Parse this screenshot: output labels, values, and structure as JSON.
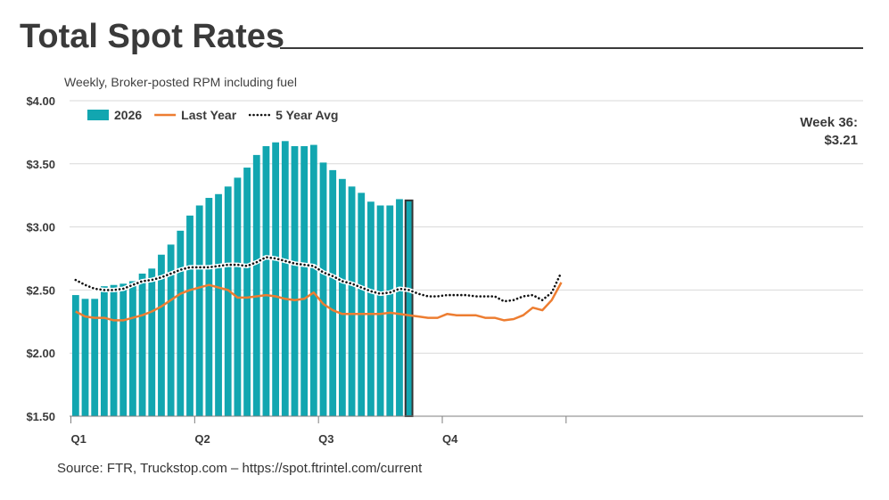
{
  "header": {
    "title": "Total Spot Rates",
    "subtitle": "Weekly, Broker-posted RPM including fuel"
  },
  "footer": {
    "source": "Source: FTR, Truckstop.com – https://spot.ftrintel.com/current"
  },
  "colors": {
    "bars": "#12a6b0",
    "last_year": "#ed7d31",
    "five_year_avg": "#111111",
    "highlight_outline": "#333333",
    "grid": "#d9d9d9",
    "text": "#3a3a3a"
  },
  "chart_data": {
    "type": "bar",
    "title": "Total Spot Rates",
    "subtitle": "Weekly, Broker-posted RPM including fuel",
    "ylim": [
      1.5,
      4.0
    ],
    "yticks": [
      {
        "value": 1.5,
        "label": "$1.50"
      },
      {
        "value": 2.0,
        "label": "$2.00"
      },
      {
        "value": 2.5,
        "label": "$2.50"
      },
      {
        "value": 3.0,
        "label": "$3.00"
      },
      {
        "value": 3.5,
        "label": "$3.50"
      },
      {
        "value": 4.0,
        "label": "$4.00"
      }
    ],
    "weeks_total": 52,
    "quarters": [
      {
        "label": "Q1",
        "start_week": 1
      },
      {
        "label": "Q2",
        "start_week": 14
      },
      {
        "label": "Q3",
        "start_week": 27
      },
      {
        "label": "Q4",
        "start_week": 40
      }
    ],
    "grid": true,
    "legend_position": "top-left",
    "legend": [
      {
        "key": "2026",
        "label": "2026",
        "style": "bar"
      },
      {
        "key": "last_year",
        "label": "Last Year",
        "style": "solid-line"
      },
      {
        "key": "five_year_avg",
        "label": "5 Year Avg",
        "style": "dotted-line"
      }
    ],
    "annotation": {
      "lines": [
        "Week 36:",
        "$3.21"
      ],
      "week": 36,
      "value": 3.21
    },
    "series": [
      {
        "key": "2026",
        "name": "2026",
        "type": "bar",
        "values": [
          2.46,
          2.43,
          2.43,
          2.53,
          2.54,
          2.55,
          2.57,
          2.63,
          2.67,
          2.78,
          2.86,
          2.97,
          3.09,
          3.17,
          3.23,
          3.26,
          3.32,
          3.39,
          3.47,
          3.57,
          3.64,
          3.67,
          3.68,
          3.64,
          3.64,
          3.65,
          3.51,
          3.45,
          3.38,
          3.32,
          3.27,
          3.2,
          3.17,
          3.17,
          3.22,
          3.21
        ]
      },
      {
        "key": "last_year",
        "name": "Last Year",
        "type": "line",
        "values": [
          2.33,
          2.29,
          2.28,
          2.28,
          2.26,
          2.26,
          2.28,
          2.3,
          2.33,
          2.37,
          2.42,
          2.47,
          2.5,
          2.52,
          2.54,
          2.52,
          2.5,
          2.44,
          2.44,
          2.45,
          2.46,
          2.45,
          2.43,
          2.42,
          2.43,
          2.48,
          2.39,
          2.34,
          2.31,
          2.31,
          2.31,
          2.31,
          2.31,
          2.32,
          2.31,
          2.3,
          2.29,
          2.28,
          2.28,
          2.31,
          2.3,
          2.3,
          2.3,
          2.28,
          2.28,
          2.26,
          2.27,
          2.3,
          2.36,
          2.34,
          2.42,
          2.56
        ]
      },
      {
        "key": "five_year_avg",
        "name": "5 Year Avg",
        "type": "line",
        "values": [
          2.58,
          2.54,
          2.51,
          2.5,
          2.5,
          2.51,
          2.54,
          2.57,
          2.58,
          2.6,
          2.63,
          2.66,
          2.68,
          2.68,
          2.68,
          2.69,
          2.7,
          2.7,
          2.69,
          2.72,
          2.76,
          2.75,
          2.73,
          2.71,
          2.7,
          2.69,
          2.64,
          2.61,
          2.57,
          2.55,
          2.52,
          2.49,
          2.47,
          2.48,
          2.51,
          2.5,
          2.47,
          2.45,
          2.45,
          2.46,
          2.46,
          2.46,
          2.45,
          2.45,
          2.45,
          2.41,
          2.42,
          2.45,
          2.46,
          2.42,
          2.48,
          2.64
        ]
      }
    ]
  }
}
